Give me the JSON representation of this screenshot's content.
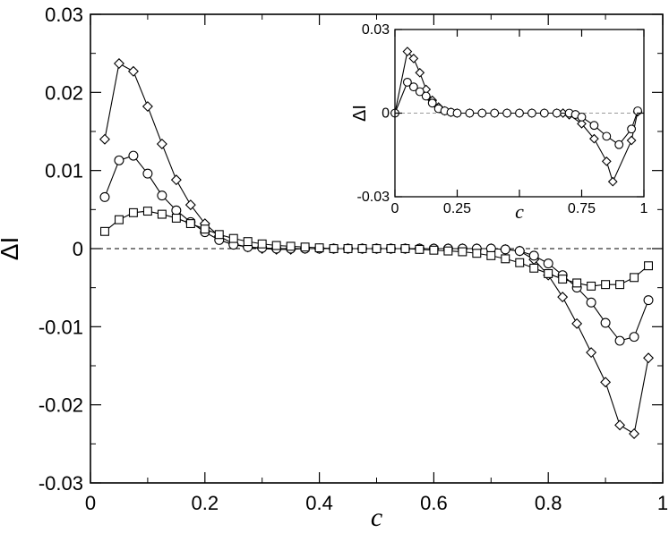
{
  "chart_data": [
    {
      "type": "line",
      "xlabel": "c",
      "ylabel": "ΔI",
      "xlim": [
        0,
        1
      ],
      "ylim": [
        -0.03,
        0.03
      ],
      "xticks": [
        "0",
        "0.2",
        "0.4",
        "0.6",
        "0.8",
        "1"
      ],
      "yticks": [
        "-0.03",
        "-0.02",
        "-0.01",
        "0",
        "0.01",
        "0.02",
        "0.03"
      ],
      "xtick_values": [
        0,
        0.2,
        0.4,
        0.6,
        0.8,
        1.0
      ],
      "ytick_values": [
        -0.03,
        -0.02,
        -0.01,
        0,
        0.01,
        0.02,
        0.03
      ],
      "reference_line": 0,
      "grid": false,
      "series": [
        {
          "marker": "diamond",
          "x": [
            0.025,
            0.05,
            0.075,
            0.1,
            0.125,
            0.15,
            0.175,
            0.2,
            0.225,
            0.25,
            0.275,
            0.3,
            0.325,
            0.35,
            0.375,
            0.4,
            0.425,
            0.45,
            0.475,
            0.5,
            0.525,
            0.55,
            0.575,
            0.6,
            0.625,
            0.65,
            0.675,
            0.7,
            0.725,
            0.75,
            0.775,
            0.8,
            0.825,
            0.85,
            0.875,
            0.9,
            0.925,
            0.95,
            0.975
          ],
          "y": [
            0.014,
            0.0237,
            0.0227,
            0.0182,
            0.0134,
            0.0088,
            0.0056,
            0.0032,
            0.0016,
            0.0006,
            0.0002,
            0.0,
            -0.0001,
            -0.0001,
            0.0,
            0.0,
            0.0,
            0.0,
            0.0,
            0.0,
            0.0,
            0.0,
            0.0,
            0.0,
            0.0,
            0.0,
            0.0,
            0.0,
            -0.0001,
            -0.0003,
            -0.0014,
            -0.0034,
            -0.0062,
            -0.0096,
            -0.0133,
            -0.0171,
            -0.0226,
            -0.0237,
            -0.014
          ]
        },
        {
          "marker": "circle",
          "x": [
            0.025,
            0.05,
            0.075,
            0.1,
            0.125,
            0.15,
            0.175,
            0.2,
            0.225,
            0.25,
            0.275,
            0.3,
            0.325,
            0.35,
            0.375,
            0.4,
            0.425,
            0.45,
            0.475,
            0.5,
            0.525,
            0.55,
            0.575,
            0.6,
            0.625,
            0.65,
            0.675,
            0.7,
            0.725,
            0.75,
            0.775,
            0.8,
            0.825,
            0.85,
            0.875,
            0.9,
            0.925,
            0.95,
            0.975
          ],
          "y": [
            0.0066,
            0.0113,
            0.0119,
            0.0096,
            0.0068,
            0.0049,
            0.0034,
            0.0021,
            0.0011,
            0.0005,
            0.0002,
            0.0001,
            0.0,
            0.0,
            0.0,
            0.0,
            0.0,
            0.0,
            0.0,
            0.0,
            0.0,
            0.0,
            0.0,
            0.0,
            0.0,
            0.0,
            0.0,
            0.0,
            -0.0001,
            -0.0003,
            -0.0009,
            -0.0019,
            -0.0034,
            -0.005,
            -0.0069,
            -0.0095,
            -0.0118,
            -0.0113,
            -0.0066
          ]
        },
        {
          "marker": "square",
          "x": [
            0.025,
            0.05,
            0.075,
            0.1,
            0.125,
            0.15,
            0.175,
            0.2,
            0.225,
            0.25,
            0.275,
            0.3,
            0.325,
            0.35,
            0.375,
            0.4,
            0.425,
            0.45,
            0.475,
            0.5,
            0.525,
            0.55,
            0.575,
            0.6,
            0.625,
            0.65,
            0.675,
            0.7,
            0.725,
            0.75,
            0.775,
            0.8,
            0.825,
            0.85,
            0.875,
            0.9,
            0.925,
            0.95,
            0.975
          ],
          "y": [
            0.0022,
            0.0037,
            0.0046,
            0.0048,
            0.0044,
            0.0039,
            0.0032,
            0.0025,
            0.0018,
            0.0013,
            0.0009,
            0.0006,
            0.0004,
            0.0003,
            0.0002,
            0.0001,
            0.0,
            0.0,
            0.0,
            0.0,
            0.0,
            0.0,
            -0.0001,
            -0.0002,
            -0.0003,
            -0.0004,
            -0.0006,
            -0.0009,
            -0.0013,
            -0.0018,
            -0.0025,
            -0.0032,
            -0.0039,
            -0.0044,
            -0.0048,
            -0.0046,
            -0.0046,
            -0.0037,
            -0.0022
          ]
        }
      ]
    },
    {
      "type": "line",
      "xlabel": "c",
      "ylabel": "ΔI",
      "xlim": [
        0,
        1
      ],
      "ylim": [
        -0.03,
        0.03
      ],
      "xticks": [
        "0",
        "0.25",
        "0.5",
        "0.75",
        "1"
      ],
      "yticks": [
        "-0.03",
        "0",
        "0.03"
      ],
      "xtick_labels": [
        "0",
        "0.25",
        "",
        "0.75",
        "1"
      ],
      "xtick_values": [
        0,
        0.25,
        0.5,
        0.75,
        1.0
      ],
      "ytick_values": [
        -0.03,
        0,
        0.03
      ],
      "reference_line": 0,
      "grid": false,
      "series": [
        {
          "marker": "diamond",
          "x": [
            0,
            0.05,
            0.075,
            0.1,
            0.125,
            0.15,
            0.175,
            0.2,
            0.225,
            0.25,
            0.3,
            0.35,
            0.4,
            0.45,
            0.5,
            0.55,
            0.6,
            0.65,
            0.675,
            0.7,
            0.75,
            0.8,
            0.85,
            0.875,
            0.95,
            0.975
          ],
          "y": [
            0.0,
            0.0221,
            0.0196,
            0.0145,
            0.0085,
            0.0046,
            0.0022,
            0.0008,
            0.0003,
            0.0,
            0.0,
            0.0,
            0.0,
            0.0,
            0.0,
            0.0,
            0.0,
            0.0,
            0.0,
            -0.0006,
            -0.0038,
            -0.0092,
            -0.0173,
            -0.0246,
            -0.0098,
            0.0005
          ]
        },
        {
          "marker": "circle",
          "x": [
            0,
            0.05,
            0.075,
            0.1,
            0.125,
            0.15,
            0.175,
            0.2,
            0.225,
            0.25,
            0.3,
            0.35,
            0.4,
            0.45,
            0.5,
            0.55,
            0.6,
            0.65,
            0.7,
            0.725,
            0.75,
            0.8,
            0.85,
            0.9,
            0.95,
            0.975
          ],
          "y": [
            0.0,
            0.0111,
            0.0094,
            0.0077,
            0.0061,
            0.0036,
            0.0016,
            0.0008,
            0.0003,
            0.0,
            0.0,
            0.0,
            0.0,
            0.0,
            0.0,
            0.0,
            0.0,
            0.0,
            0.0,
            -0.0005,
            -0.0014,
            -0.0044,
            -0.0083,
            -0.0113,
            -0.0057,
            0.0008
          ]
        }
      ]
    }
  ]
}
